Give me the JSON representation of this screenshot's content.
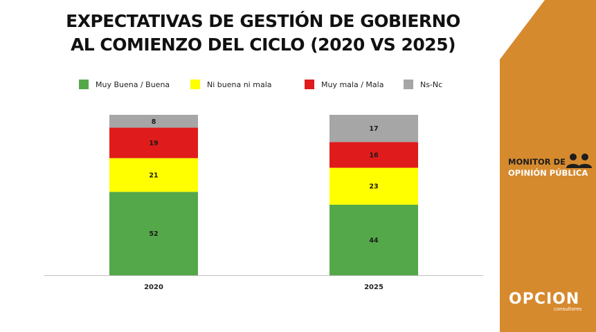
{
  "chart_data": {
    "type": "bar",
    "stacked": true,
    "title_lines": [
      "EXPECTATIVAS DE GESTIÓN DE GOBIERNO",
      "AL COMIENZO DEL CICLO (2020 VS 2025)"
    ],
    "categories": [
      "2020",
      "2025"
    ],
    "series": [
      {
        "name": "Muy Buena / Buena",
        "color": "#55a84a",
        "values": [
          52,
          44
        ]
      },
      {
        "name": "Ni buena ni mala",
        "color": "#ffff00",
        "values": [
          21,
          23
        ]
      },
      {
        "name": "Muy mala / Mala",
        "color": "#e01b1b",
        "values": [
          19,
          16
        ]
      },
      {
        "name": "Ns-Nc",
        "color": "#a6a6a6",
        "values": [
          8,
          17
        ]
      }
    ],
    "ylim": [
      0,
      100
    ],
    "grid": false,
    "legend_position": "top"
  },
  "branding": {
    "monitor_line1": "MONITOR DE",
    "monitor_line2": "OPINIÓN PÚBLICA",
    "logo_text": "OPCION",
    "logo_sub": "consultores"
  }
}
